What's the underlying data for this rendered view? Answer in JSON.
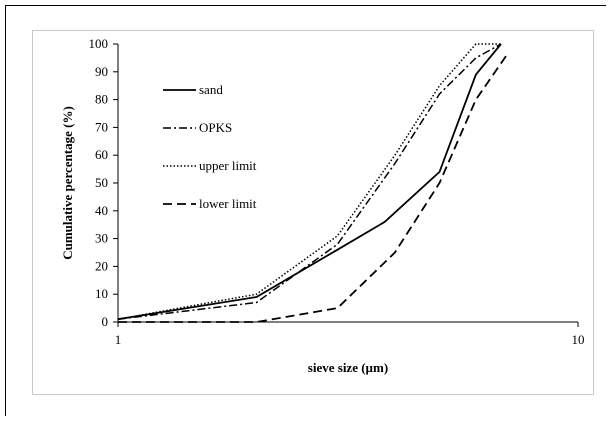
{
  "chart_data": {
    "type": "line",
    "title": "",
    "xlabel": "sieve size (µm)",
    "ylabel": "Cumulative percentage (%)",
    "x_scale": "log",
    "xlim": [
      1,
      10
    ],
    "ylim": [
      0,
      100
    ],
    "x_ticks": [
      "1",
      "10"
    ],
    "y_ticks": [
      0,
      10,
      20,
      30,
      40,
      50,
      60,
      70,
      80,
      90,
      100
    ],
    "grid": false,
    "legend_position": "top-left, inside plot",
    "series": [
      {
        "name": "sand",
        "style": "solid",
        "points": [
          [
            1,
            1
          ],
          [
            2,
            9
          ],
          [
            3,
            26
          ],
          [
            3.8,
            36
          ],
          [
            5,
            54
          ],
          [
            6,
            89
          ],
          [
            6.8,
            100
          ]
        ]
      },
      {
        "name": "OPKS",
        "style": "dash-dot",
        "points": [
          [
            1,
            1
          ],
          [
            2,
            7
          ],
          [
            3,
            28
          ],
          [
            4,
            57
          ],
          [
            5,
            82
          ],
          [
            6,
            95
          ],
          [
            6.8,
            100
          ]
        ]
      },
      {
        "name": "upper limit",
        "style": "dotted",
        "points": [
          [
            1,
            1
          ],
          [
            2,
            10
          ],
          [
            3,
            31
          ],
          [
            4,
            60
          ],
          [
            5,
            85
          ],
          [
            6,
            100
          ],
          [
            6.8,
            100
          ]
        ]
      },
      {
        "name": "lower limit",
        "style": "dashed",
        "points": [
          [
            1,
            0
          ],
          [
            2,
            0
          ],
          [
            3,
            5
          ],
          [
            4,
            25
          ],
          [
            5,
            50
          ],
          [
            6,
            80
          ],
          [
            7,
            96
          ]
        ]
      }
    ]
  }
}
